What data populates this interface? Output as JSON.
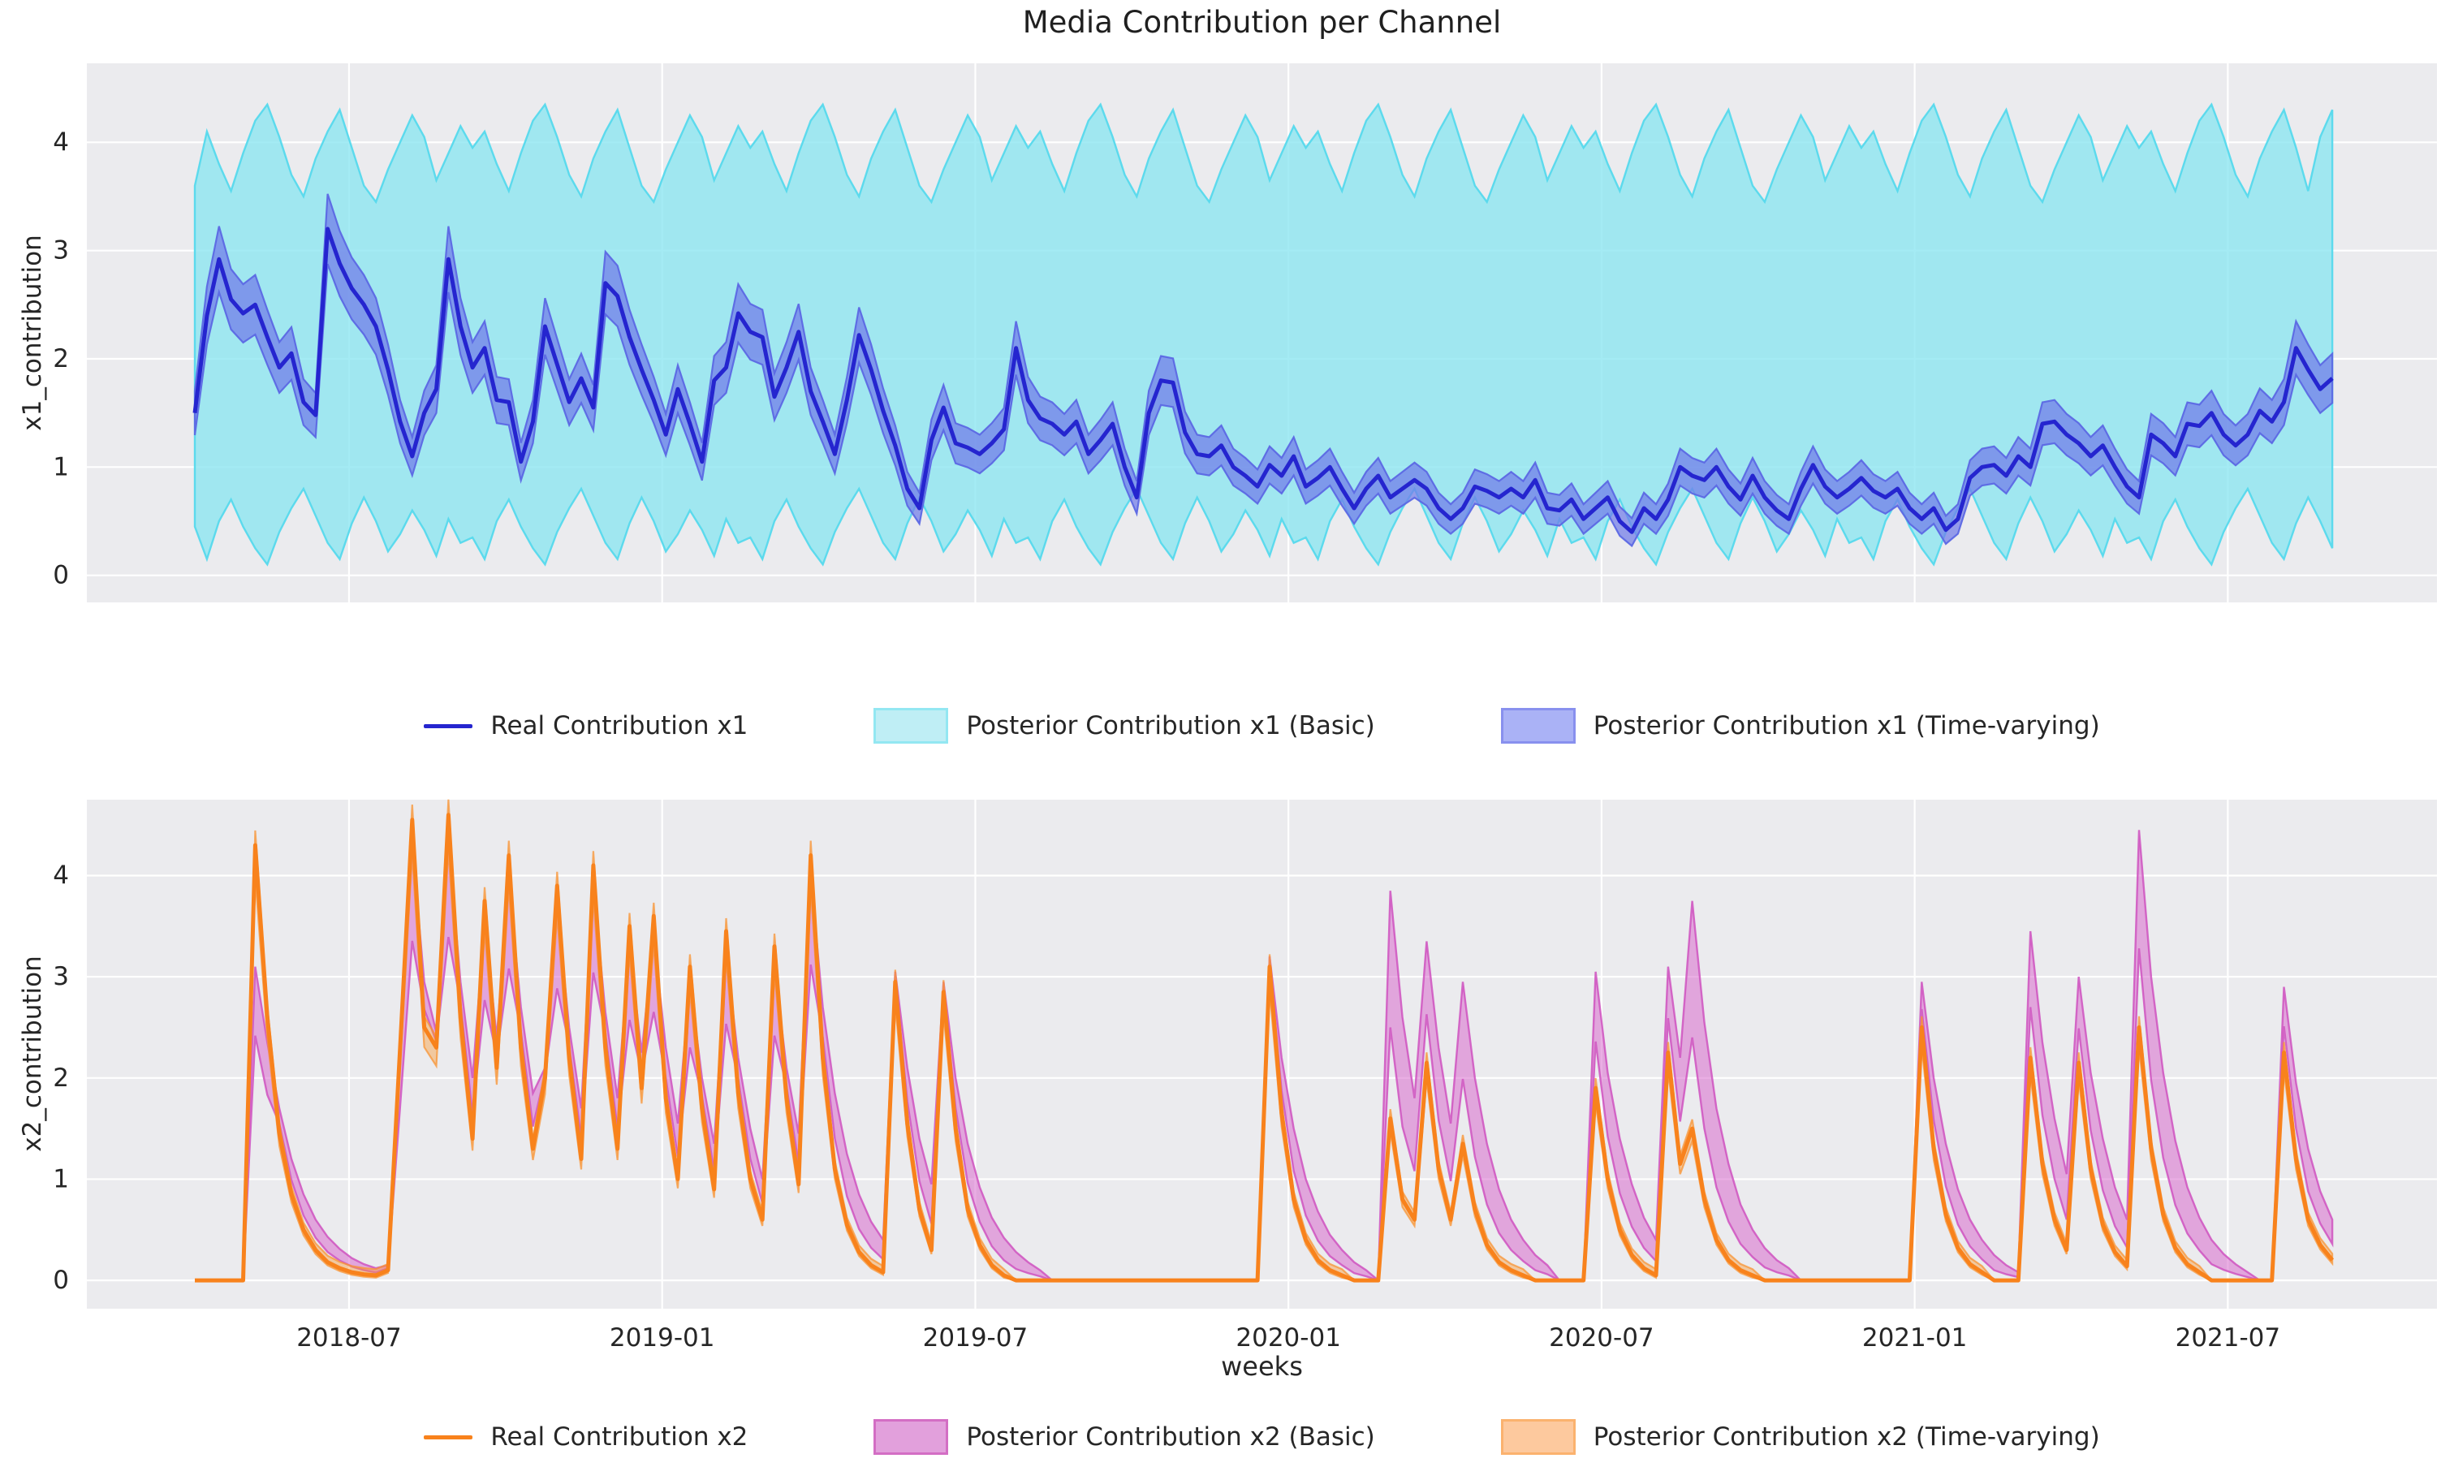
{
  "figure": {
    "title": "Media Contribution per Channel",
    "background": "#ffffff",
    "axes_background": "#ebebee",
    "grid_color": "#ffffff",
    "text_color": "#262626"
  },
  "legend_top": {
    "items": [
      {
        "label": "Real Contribution x1",
        "swatch": {
          "kind": "line",
          "color": "#2525cf"
        }
      },
      {
        "label": "Posterior Contribution x1 (Basic)",
        "swatch": {
          "kind": "patch",
          "fill": "#bfeef5",
          "edge": "#93e7f2"
        }
      },
      {
        "label": "Posterior Contribution x1 (Time-varying)",
        "swatch": {
          "kind": "patch",
          "fill": "#aab2f6",
          "edge": "#8890ee"
        }
      }
    ]
  },
  "legend_bottom": {
    "items": [
      {
        "label": "Real Contribution x2",
        "swatch": {
          "kind": "line",
          "color": "#f8821c"
        }
      },
      {
        "label": "Posterior Contribution x2 (Basic)",
        "swatch": {
          "kind": "patch",
          "fill": "#e2a0dc",
          "edge": "#d36ec4"
        }
      },
      {
        "label": "Posterior Contribution x2 (Time-varying)",
        "swatch": {
          "kind": "patch",
          "fill": "#fdc99e",
          "edge": "#fbb26e"
        }
      }
    ]
  },
  "chart_data": [
    {
      "subplot": "top",
      "type": "line",
      "title": "Media Contribution per Channel",
      "ylabel": "x1_contribution",
      "yticks": [
        0,
        1,
        2,
        3,
        4
      ],
      "ylim": [
        -0.25,
        4.73
      ],
      "grid": true,
      "line": {
        "name": "Real Contribution x1",
        "color": "#2525cf",
        "width": 5
      },
      "bands": {
        "basic": {
          "name": "Posterior Contribution x1 (Basic)",
          "fill": "rgba(139,229,241,0.78)",
          "edge": "rgba(86,217,236,0.95)"
        },
        "time_varying": {
          "name": "Posterior Contribution x1 (Time-varying)",
          "fill": "rgba(112,124,233,0.72)",
          "edge": "rgba(92,104,228,0.95)",
          "halfwidth_rule": {
            "base": 0.1,
            "slope": 0.07
          }
        }
      },
      "real": [
        1.5,
        2.4,
        2.92,
        2.55,
        2.42,
        2.5,
        2.2,
        1.92,
        2.05,
        1.6,
        1.48,
        3.2,
        2.88,
        2.65,
        2.5,
        2.3,
        1.9,
        1.42,
        1.1,
        1.5,
        1.72,
        2.92,
        2.3,
        1.92,
        2.1,
        1.62,
        1.6,
        1.05,
        1.42,
        2.3,
        1.95,
        1.6,
        1.82,
        1.55,
        2.7,
        2.58,
        2.2,
        1.9,
        1.62,
        1.3,
        1.72,
        1.4,
        1.05,
        1.8,
        1.92,
        2.42,
        2.25,
        2.2,
        1.65,
        1.92,
        2.25,
        1.7,
        1.42,
        1.12,
        1.62,
        2.22,
        1.9,
        1.52,
        1.2,
        0.8,
        0.62,
        1.25,
        1.55,
        1.22,
        1.18,
        1.12,
        1.22,
        1.35,
        2.1,
        1.62,
        1.45,
        1.4,
        1.3,
        1.42,
        1.12,
        1.25,
        1.4,
        1.0,
        0.72,
        1.5,
        1.8,
        1.78,
        1.32,
        1.12,
        1.1,
        1.2,
        1.0,
        0.92,
        0.82,
        1.02,
        0.92,
        1.1,
        0.82,
        0.9,
        1.0,
        0.8,
        0.62,
        0.8,
        0.92,
        0.72,
        0.8,
        0.88,
        0.8,
        0.62,
        0.52,
        0.62,
        0.82,
        0.78,
        0.72,
        0.8,
        0.72,
        0.88,
        0.62,
        0.6,
        0.7,
        0.52,
        0.62,
        0.72,
        0.5,
        0.4,
        0.62,
        0.52,
        0.7,
        1.0,
        0.92,
        0.88,
        1.0,
        0.82,
        0.7,
        0.92,
        0.72,
        0.6,
        0.52,
        0.8,
        1.02,
        0.82,
        0.72,
        0.8,
        0.9,
        0.78,
        0.72,
        0.8,
        0.62,
        0.52,
        0.62,
        0.42,
        0.52,
        0.9,
        1.0,
        1.02,
        0.92,
        1.1,
        1.0,
        1.4,
        1.42,
        1.3,
        1.22,
        1.1,
        1.2,
        1.0,
        0.82,
        0.72,
        1.3,
        1.22,
        1.1,
        1.4,
        1.38,
        1.5,
        1.3,
        1.2,
        1.3,
        1.52,
        1.42,
        1.6,
        2.1,
        1.9,
        1.72,
        1.82
      ],
      "basic_hi": [
        3.6,
        4.1,
        3.8,
        3.55,
        3.9,
        4.2,
        4.35,
        4.05,
        3.7,
        3.5,
        3.85,
        4.1,
        4.3,
        3.95,
        3.6,
        3.45,
        3.75,
        4.0,
        4.25,
        4.05,
        3.65,
        3.9,
        4.15,
        3.95,
        4.1,
        3.8,
        3.55,
        3.9,
        4.2,
        4.35,
        4.05,
        3.7,
        3.5,
        3.85,
        4.1,
        4.3,
        3.95,
        3.6,
        3.45,
        3.75,
        4.0,
        4.25,
        4.05,
        3.65,
        3.9,
        4.15,
        3.95,
        4.1,
        3.8,
        3.55,
        3.9,
        4.2,
        4.35,
        4.05,
        3.7,
        3.5,
        3.85,
        4.1,
        4.3,
        3.95,
        3.6,
        3.45,
        3.75,
        4.0,
        4.25,
        4.05,
        3.65,
        3.9,
        4.15,
        3.95,
        4.1,
        3.8,
        3.55,
        3.9,
        4.2,
        4.35,
        4.05,
        3.7,
        3.5,
        3.85,
        4.1,
        4.3,
        3.95,
        3.6,
        3.45,
        3.75,
        4.0,
        4.25,
        4.05,
        3.65,
        3.9,
        4.15,
        3.95,
        4.1,
        3.8,
        3.55,
        3.9,
        4.2,
        4.35,
        4.05,
        3.7,
        3.5,
        3.85,
        4.1,
        4.3,
        3.95,
        3.6,
        3.45,
        3.75,
        4.0,
        4.25,
        4.05,
        3.65,
        3.9,
        4.15,
        3.95,
        4.1,
        3.8,
        3.55,
        3.9,
        4.2,
        4.35,
        4.05,
        3.7,
        3.5,
        3.85,
        4.1,
        4.3,
        3.95,
        3.6,
        3.45,
        3.75,
        4.0,
        4.25,
        4.05,
        3.65,
        3.9,
        4.15,
        3.95,
        4.1,
        3.8,
        3.55,
        3.9,
        4.2,
        4.35,
        4.05,
        3.7,
        3.5,
        3.85,
        4.1,
        4.3,
        3.95,
        3.6,
        3.45,
        3.75,
        4.0,
        4.25,
        4.05,
        3.65,
        3.9,
        4.15,
        3.95,
        4.1,
        3.8,
        3.55,
        3.9,
        4.2,
        4.35,
        4.05,
        3.7,
        3.5,
        3.85,
        4.1,
        4.3,
        3.95,
        3.55,
        4.05,
        4.3
      ],
      "basic_lo": [
        0.45,
        0.15,
        0.5,
        0.7,
        0.45,
        0.25,
        0.1,
        0.4,
        0.62,
        0.8,
        0.55,
        0.3,
        0.15,
        0.48,
        0.72,
        0.5,
        0.22,
        0.38,
        0.6,
        0.42,
        0.18,
        0.52,
        0.3,
        0.35,
        0.15,
        0.5,
        0.7,
        0.45,
        0.25,
        0.1,
        0.4,
        0.62,
        0.8,
        0.55,
        0.3,
        0.15,
        0.48,
        0.72,
        0.5,
        0.22,
        0.38,
        0.6,
        0.42,
        0.18,
        0.52,
        0.3,
        0.35,
        0.15,
        0.5,
        0.7,
        0.45,
        0.25,
        0.1,
        0.4,
        0.62,
        0.8,
        0.55,
        0.3,
        0.15,
        0.48,
        0.72,
        0.5,
        0.22,
        0.38,
        0.6,
        0.42,
        0.18,
        0.52,
        0.3,
        0.35,
        0.15,
        0.5,
        0.7,
        0.45,
        0.25,
        0.1,
        0.4,
        0.62,
        0.8,
        0.55,
        0.3,
        0.15,
        0.48,
        0.72,
        0.5,
        0.22,
        0.38,
        0.6,
        0.42,
        0.18,
        0.52,
        0.3,
        0.35,
        0.15,
        0.5,
        0.7,
        0.45,
        0.25,
        0.1,
        0.4,
        0.62,
        0.8,
        0.55,
        0.3,
        0.15,
        0.48,
        0.72,
        0.5,
        0.22,
        0.38,
        0.6,
        0.42,
        0.18,
        0.52,
        0.3,
        0.35,
        0.15,
        0.5,
        0.7,
        0.45,
        0.25,
        0.1,
        0.4,
        0.62,
        0.8,
        0.55,
        0.3,
        0.15,
        0.48,
        0.72,
        0.5,
        0.22,
        0.38,
        0.6,
        0.42,
        0.18,
        0.52,
        0.3,
        0.35,
        0.15,
        0.5,
        0.7,
        0.45,
        0.25,
        0.1,
        0.4,
        0.62,
        0.8,
        0.55,
        0.3,
        0.15,
        0.48,
        0.72,
        0.5,
        0.22,
        0.38,
        0.6,
        0.42,
        0.18,
        0.52,
        0.3,
        0.35,
        0.15,
        0.5,
        0.7,
        0.45,
        0.25,
        0.1,
        0.4,
        0.62,
        0.8,
        0.55,
        0.3,
        0.15,
        0.48,
        0.72,
        0.5,
        0.25
      ]
    },
    {
      "subplot": "bottom",
      "type": "line",
      "ylabel": "x2_contribution",
      "yticks": [
        0,
        1,
        2,
        3,
        4
      ],
      "ylim": [
        -0.28,
        4.75
      ],
      "grid": true,
      "line": {
        "name": "Real Contribution x2",
        "color": "#f8821c",
        "width": 5
      },
      "bands": {
        "basic": {
          "name": "Posterior Contribution x2 (Basic)",
          "fill": "rgba(216,107,205,0.55)",
          "edge": "rgba(207,82,192,0.85)",
          "lo_rule": {
            "below_peak_ratio": 0.78,
            "above_mix": 0.4
          }
        },
        "time_varying": {
          "name": "Posterior Contribution x2 (Time-varying)",
          "fill": "rgba(250,152,50,0.42)",
          "edge": "rgba(248,148,52,0.75)",
          "hi_rule": {
            "factor": 1.02,
            "offset": 0.06
          },
          "lo_rule": {
            "factor": 0.93,
            "offset": -0.02
          }
        }
      },
      "real": [
        0,
        0,
        0,
        0,
        0,
        4.3,
        2.6,
        1.45,
        0.85,
        0.5,
        0.3,
        0.18,
        0.12,
        0.08,
        0.06,
        0.05,
        0.1,
        2.3,
        4.55,
        2.5,
        2.3,
        4.6,
        2.6,
        1.4,
        3.75,
        2.1,
        4.2,
        2.3,
        1.3,
        2.0,
        3.9,
        2.2,
        1.2,
        4.1,
        2.3,
        1.3,
        3.5,
        1.9,
        3.6,
        1.8,
        1.0,
        3.1,
        1.7,
        0.9,
        3.45,
        1.85,
        1.0,
        0.6,
        3.3,
        1.8,
        0.95,
        4.2,
        2.2,
        1.1,
        0.55,
        0.28,
        0.15,
        0.08,
        2.95,
        1.55,
        0.7,
        0.3,
        2.85,
        1.5,
        0.7,
        0.35,
        0.15,
        0.05,
        0,
        0,
        0,
        0,
        0,
        0,
        0,
        0,
        0,
        0,
        0,
        0,
        0,
        0,
        0,
        0,
        0,
        0,
        0,
        0,
        0,
        3.1,
        1.65,
        0.8,
        0.4,
        0.2,
        0.1,
        0.05,
        0,
        0,
        0,
        1.6,
        0.8,
        0.6,
        2.15,
        1.1,
        0.6,
        1.35,
        0.7,
        0.35,
        0.18,
        0.1,
        0.05,
        0,
        0,
        0,
        0,
        0,
        1.9,
        1.0,
        0.5,
        0.25,
        0.12,
        0.05,
        2.25,
        1.15,
        1.5,
        0.8,
        0.4,
        0.2,
        0.1,
        0.05,
        0,
        0,
        0,
        0,
        0,
        0,
        0,
        0,
        0,
        0,
        0,
        0,
        0,
        2.5,
        1.3,
        0.65,
        0.32,
        0.16,
        0.08,
        0,
        0,
        0,
        2.2,
        1.15,
        0.6,
        0.3,
        2.15,
        1.1,
        0.55,
        0.28,
        0.14,
        2.5,
        1.3,
        0.65,
        0.32,
        0.16,
        0.08,
        0,
        0,
        0,
        0,
        0,
        0,
        2.25,
        1.2,
        0.6,
        0.35,
        0.2
      ],
      "basic_hi": [
        0,
        0,
        0,
        0,
        0,
        3.1,
        2.35,
        1.7,
        1.2,
        0.85,
        0.6,
        0.43,
        0.31,
        0.22,
        0.16,
        0.12,
        0.15,
        2.2,
        4.3,
        2.95,
        2.45,
        4.35,
        2.95,
        2.0,
        3.55,
        2.4,
        3.95,
        2.7,
        1.85,
        2.1,
        3.7,
        2.5,
        1.7,
        3.9,
        2.65,
        1.8,
        3.3,
        2.25,
        3.4,
        2.3,
        1.55,
        2.95,
        2.0,
        1.35,
        3.25,
        2.2,
        1.5,
        1.0,
        3.1,
        2.1,
        1.45,
        4.0,
        2.7,
        1.85,
        1.25,
        0.85,
        0.58,
        0.4,
        3.05,
        2.1,
        1.4,
        0.95,
        2.95,
        2.0,
        1.35,
        0.92,
        0.62,
        0.42,
        0.28,
        0.18,
        0.1,
        0,
        0,
        0,
        0,
        0,
        0,
        0,
        0,
        0,
        0,
        0,
        0,
        0,
        0,
        0,
        0,
        0,
        0,
        3.2,
        2.2,
        1.5,
        1.0,
        0.68,
        0.45,
        0.3,
        0.18,
        0.1,
        0,
        3.85,
        2.6,
        1.8,
        3.35,
        2.3,
        1.55,
        2.95,
        2.0,
        1.35,
        0.9,
        0.6,
        0.4,
        0.25,
        0.15,
        0,
        0,
        0,
        3.05,
        2.05,
        1.4,
        0.95,
        0.62,
        0.4,
        3.1,
        2.2,
        3.75,
        2.55,
        1.7,
        1.15,
        0.75,
        0.5,
        0.32,
        0.2,
        0.12,
        0,
        0,
        0,
        0,
        0,
        0,
        0,
        0,
        0,
        0,
        2.95,
        2.0,
        1.35,
        0.9,
        0.6,
        0.4,
        0.25,
        0.15,
        0.08,
        3.45,
        2.35,
        1.6,
        1.05,
        3.0,
        2.05,
        1.4,
        0.92,
        0.6,
        4.45,
        3.0,
        2.05,
        1.38,
        0.92,
        0.62,
        0.4,
        0.26,
        0.16,
        0.08,
        0,
        0,
        2.9,
        1.95,
        1.3,
        0.88,
        0.6
      ]
    }
  ],
  "x_axis": {
    "label": "weeks",
    "tick_labels": [
      "2018-07",
      "2019-01",
      "2019-07",
      "2020-01",
      "2020-07",
      "2021-01",
      "2021-07"
    ],
    "tick_weeks": [
      12.77,
      38.7,
      64.63,
      90.56,
      116.49,
      142.42,
      168.35
    ],
    "n_weeks": 178
  }
}
